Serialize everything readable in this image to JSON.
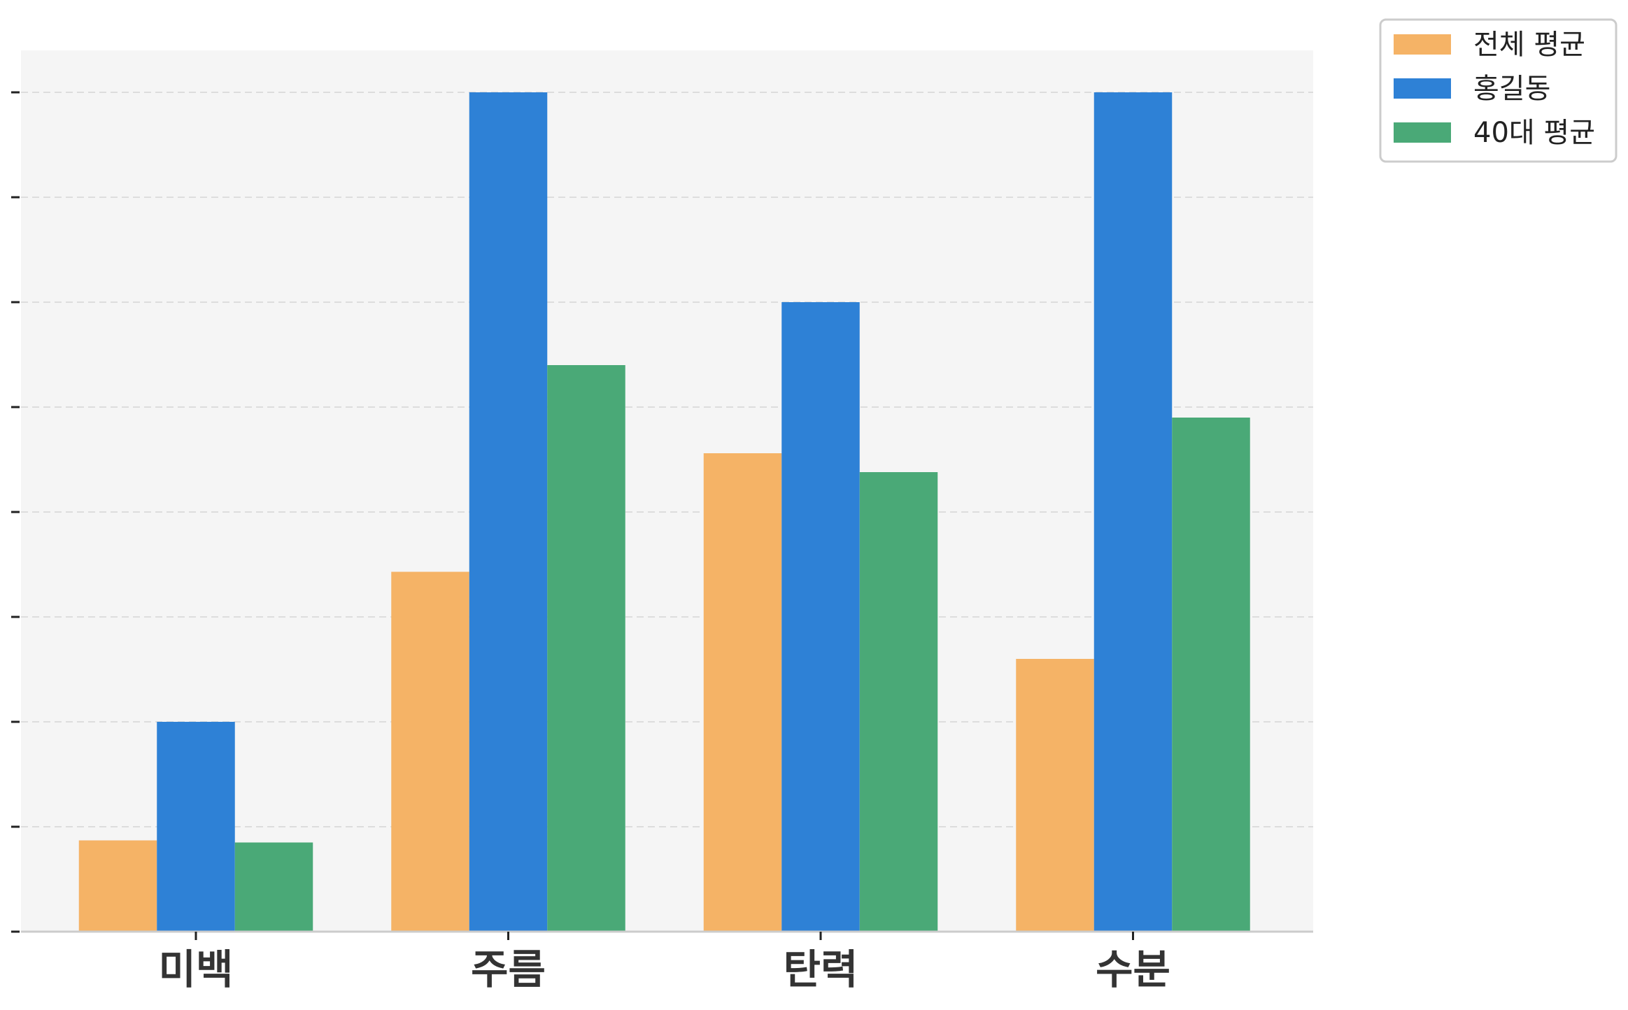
{
  "chart_data": {
    "type": "bar",
    "title": "",
    "xlabel": "",
    "ylabel": "",
    "categories": [
      "미백",
      "주름",
      "탄력",
      "수분"
    ],
    "series": [
      {
        "name": "전체 평균",
        "color": "#F5B366",
        "values": [
          0.87,
          3.43,
          4.56,
          2.6
        ]
      },
      {
        "name": "홍길동",
        "color": "#2E81D6",
        "values": [
          2.0,
          8.0,
          6.0,
          8.0
        ]
      },
      {
        "name": "40대 평균",
        "color": "#4AA977",
        "values": [
          0.85,
          5.4,
          4.38,
          4.9
        ]
      }
    ],
    "ylim": [
      0,
      8.4
    ],
    "y_tick_count": 9,
    "y_tick_labels_shown": false,
    "grid": true,
    "grid_style": "dashed",
    "background": "#F5F5F5",
    "legend": "outside top-right"
  }
}
